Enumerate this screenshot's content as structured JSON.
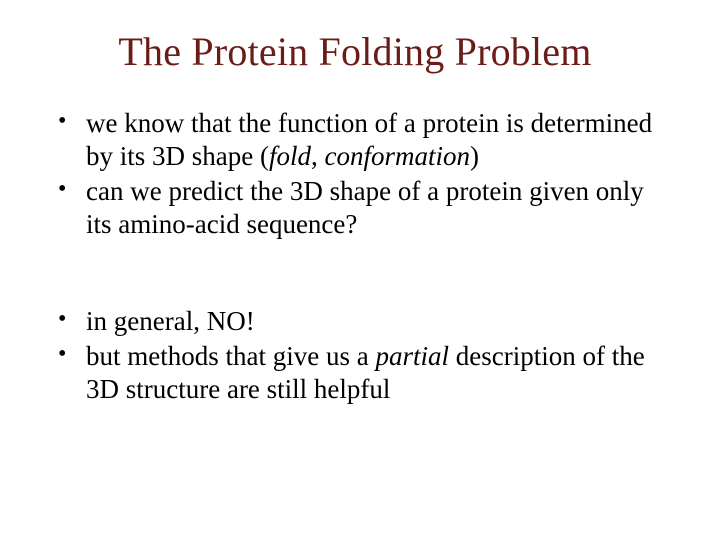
{
  "colors": {
    "title": "#6a1d18",
    "body": "#000000",
    "background": "#ffffff"
  },
  "typography": {
    "family": "Times New Roman",
    "title_fontsize": 40,
    "body_fontsize": 27
  },
  "title": "The Protein Folding Problem",
  "bullets_top": [
    {
      "pre": "we know that the function of a protein is determined by its 3D shape (",
      "ital1": "fold",
      "mid": ", ",
      "ital2": "conformation",
      "post": ")"
    },
    {
      "pre": "can we predict the 3D shape of a protein given only its amino-acid sequence?",
      "ital1": "",
      "mid": "",
      "ital2": "",
      "post": ""
    }
  ],
  "bullets_bottom": [
    {
      "pre": "in general, NO!",
      "ital1": "",
      "mid": "",
      "ital2": "",
      "post": ""
    },
    {
      "pre": "but methods that give us a ",
      "ital1": "partial",
      "mid": "",
      "ital2": "",
      "post": " description of the 3D structure are still helpful"
    }
  ]
}
